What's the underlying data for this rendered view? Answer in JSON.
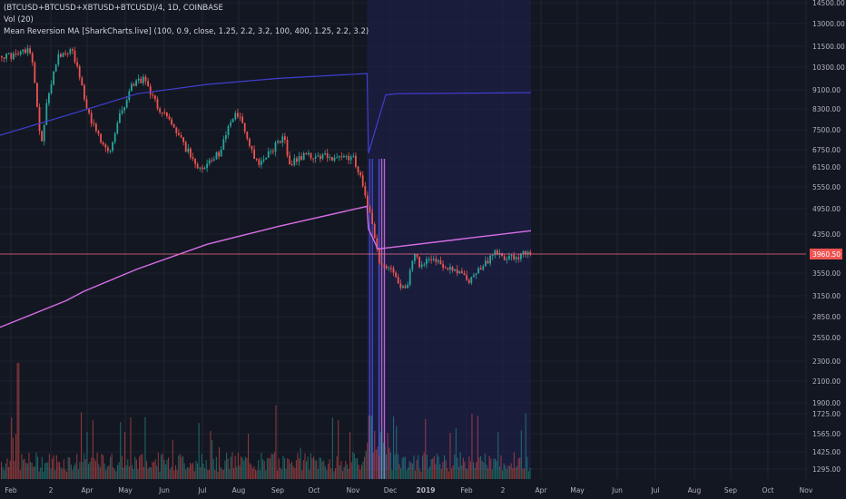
{
  "legend": {
    "symbol_line": "(BTCUSD+BTCUSD+XBTUSD+BTCUSD)/4, 1D, COINBASE",
    "volume_line": "Vol (20)",
    "indicator_line": "Mean Reversion MA [SharkCharts.live] (100, 0.9, close, 1.25, 2.2, 3.2, 100, 400, 1.25, 2.2, 3.2)"
  },
  "colors": {
    "background": "#131722",
    "grid": "#2a2e39",
    "axis_text": "#b2b5be",
    "up_candle": "#26a69a",
    "down_candle": "#ef5350",
    "ma_short": "#3f3fd0",
    "ma_long": "#d86ee6",
    "band_fill": "#1f1f4d",
    "price_line": "#f06c8a",
    "price_label_bg": "#ef5350"
  },
  "chart_data": {
    "type": "candlestick",
    "price_scale": "log",
    "y_ticks": [
      "14500.00",
      "13000.00",
      "11500.00",
      "10300.00",
      "9100.00",
      "8300.00",
      "7500.00",
      "6750.00",
      "6150.00",
      "5550.00",
      "4950.00",
      "4350.00",
      "3960.50",
      "3550.00",
      "3150.00",
      "2850.00",
      "2550.00",
      "2300.00",
      "2100.00",
      "1900.00",
      "1725.00",
      "1565.00",
      "1425.00",
      "1295.00"
    ],
    "x_ticks": [
      "Feb",
      "2",
      "Apr",
      "May",
      "Jun",
      "Jul",
      "Aug",
      "Sep",
      "Oct",
      "Nov",
      "Dec",
      "2019",
      "Feb",
      "2",
      "Apr",
      "May",
      "Jun",
      "Jul",
      "Aug",
      "Sep",
      "Oct",
      "Nov"
    ],
    "last_price": 3960.5,
    "price_points": [
      [
        "2018-01-15",
        11000
      ],
      [
        "2018-01-20",
        11300
      ],
      [
        "2018-01-28",
        11200
      ],
      [
        "2018-02-05",
        6900
      ],
      [
        "2018-02-10",
        8600
      ],
      [
        "2018-02-20",
        11000
      ],
      [
        "2018-03-01",
        11200
      ],
      [
        "2018-03-05",
        11300
      ],
      [
        "2018-03-18",
        8200
      ],
      [
        "2018-03-31",
        6900
      ],
      [
        "2018-04-07",
        6800
      ],
      [
        "2018-04-15",
        8100
      ],
      [
        "2018-04-25",
        9400
      ],
      [
        "2018-05-05",
        9800
      ],
      [
        "2018-05-10",
        9200
      ],
      [
        "2018-05-20",
        8300
      ],
      [
        "2018-06-01",
        7600
      ],
      [
        "2018-06-10",
        6900
      ],
      [
        "2018-06-25",
        6100
      ],
      [
        "2018-07-01",
        6400
      ],
      [
        "2018-07-10",
        6600
      ],
      [
        "2018-07-25",
        8300
      ],
      [
        "2018-08-01",
        7600
      ],
      [
        "2018-08-10",
        6500
      ],
      [
        "2018-08-15",
        6300
      ],
      [
        "2018-08-25",
        6700
      ],
      [
        "2018-09-05",
        7300
      ],
      [
        "2018-09-10",
        6300
      ],
      [
        "2018-09-25",
        6600
      ],
      [
        "2018-10-10",
        6550
      ],
      [
        "2018-10-20",
        6450
      ],
      [
        "2018-11-05",
        6450
      ],
      [
        "2018-11-14",
        5600
      ],
      [
        "2018-11-20",
        4600
      ],
      [
        "2018-11-25",
        3800
      ],
      [
        "2018-12-05",
        3600
      ],
      [
        "2018-12-15",
        3250
      ],
      [
        "2018-12-22",
        3900
      ],
      [
        "2018-12-27",
        3700
      ],
      [
        "2019-01-05",
        3900
      ],
      [
        "2019-01-10",
        3700
      ],
      [
        "2019-01-25",
        3550
      ],
      [
        "2019-02-01",
        3450
      ],
      [
        "2019-02-08",
        3650
      ],
      [
        "2019-02-20",
        3950
      ],
      [
        "2019-03-01",
        3820
      ],
      [
        "2019-03-10",
        3900
      ],
      [
        "2019-03-20",
        3980
      ]
    ],
    "ma_long_points": [
      [
        "2018-01-01",
        2700
      ],
      [
        "2018-02-28",
        3100
      ],
      [
        "2018-03-15",
        3250
      ],
      [
        "2018-05-01",
        3650
      ],
      [
        "2018-07-01",
        4150
      ],
      [
        "2018-09-01",
        4550
      ],
      [
        "2018-11-17",
        5050
      ],
      [
        "2018-11-18",
        4500
      ],
      [
        "2018-11-25",
        4050
      ],
      [
        "2018-12-10",
        4100
      ],
      [
        "2019-03-20",
        4450
      ]
    ],
    "ma_short_points": [
      [
        "2018-01-01",
        7300
      ],
      [
        "2018-03-01",
        8100
      ],
      [
        "2018-05-01",
        9050
      ],
      [
        "2018-07-01",
        9500
      ],
      [
        "2018-09-01",
        9800
      ],
      [
        "2018-11-17",
        10050
      ],
      [
        "2018-11-18",
        6650
      ],
      [
        "2018-12-01",
        9000
      ],
      [
        "2018-12-10",
        9050
      ],
      [
        "2019-03-20",
        9100
      ]
    ]
  }
}
